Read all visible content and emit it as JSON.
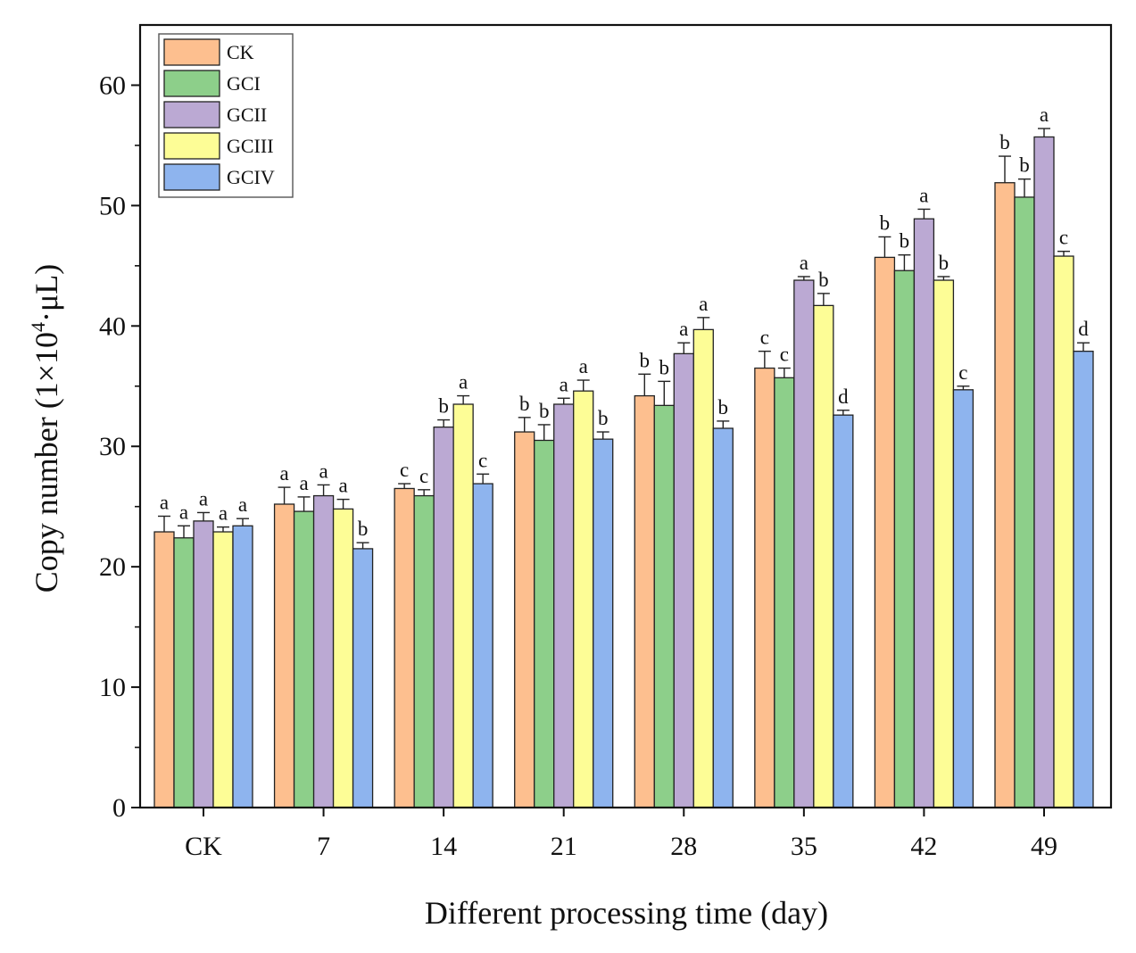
{
  "chart_data": {
    "type": "bar",
    "title": "",
    "xlabel": "Different processing time (day)",
    "ylabel": {
      "prefix": "Copy number (1×10",
      "superscript": "4",
      "suffix": "·μL)"
    },
    "ylim": [
      0,
      65
    ],
    "yticks": [
      0,
      10,
      20,
      30,
      40,
      50,
      60
    ],
    "legend_position": "top-left",
    "categories": [
      "CK",
      "7",
      "14",
      "21",
      "28",
      "35",
      "42",
      "49"
    ],
    "series": [
      {
        "name": "CK",
        "color": "#FDBF8F",
        "values": [
          22.9,
          25.2,
          26.5,
          31.2,
          34.2,
          36.5,
          45.7,
          51.9
        ],
        "errors": [
          1.3,
          1.4,
          0.4,
          1.2,
          1.8,
          1.4,
          1.7,
          2.2
        ],
        "sig": [
          "a",
          "a",
          "c",
          "b",
          "b",
          "c",
          "b",
          "b"
        ]
      },
      {
        "name": "GCI",
        "color": "#8DCF8A",
        "values": [
          22.4,
          24.6,
          25.9,
          30.5,
          33.4,
          35.7,
          44.6,
          50.7
        ],
        "errors": [
          1.0,
          1.2,
          0.5,
          1.3,
          2.0,
          0.8,
          1.3,
          1.5
        ],
        "sig": [
          "a",
          "a",
          "c",
          "b",
          "b",
          "c",
          "b",
          "b"
        ]
      },
      {
        "name": "GCII",
        "color": "#BBA9D3",
        "values": [
          23.8,
          25.9,
          31.6,
          33.5,
          37.7,
          43.8,
          48.9,
          55.7
        ],
        "errors": [
          0.7,
          0.9,
          0.6,
          0.5,
          0.9,
          0.3,
          0.8,
          0.7
        ],
        "sig": [
          "a",
          "a",
          "b",
          "a",
          "a",
          "a",
          "a",
          "a"
        ]
      },
      {
        "name": "GCIII",
        "color": "#FDFD96",
        "values": [
          22.9,
          24.8,
          33.5,
          34.6,
          39.7,
          41.7,
          43.8,
          45.8
        ],
        "errors": [
          0.4,
          0.8,
          0.7,
          0.9,
          1.0,
          1.0,
          0.3,
          0.4
        ],
        "sig": [
          "a",
          "a",
          "a",
          "a",
          "a",
          "b",
          "b",
          "c"
        ]
      },
      {
        "name": "GCIV",
        "color": "#8EB4EE",
        "values": [
          23.4,
          21.5,
          26.9,
          30.6,
          31.5,
          32.6,
          34.7,
          37.9
        ],
        "errors": [
          0.6,
          0.5,
          0.8,
          0.6,
          0.6,
          0.4,
          0.3,
          0.7
        ],
        "sig": [
          "a",
          "b",
          "c",
          "b",
          "b",
          "d",
          "c",
          "d"
        ]
      }
    ]
  }
}
